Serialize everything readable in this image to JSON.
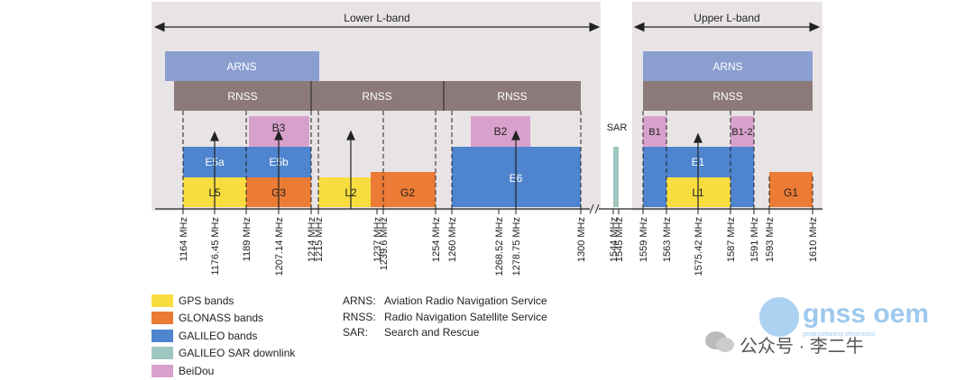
{
  "regions": {
    "lower": "Lower L-band",
    "upper": "Upper L-band"
  },
  "band_labels": {
    "arns": "ARNS",
    "rnss": "RNSS",
    "sar": "SAR",
    "l5": "L5",
    "e5a": "E5a",
    "e5b": "E5b",
    "b3": "B3",
    "g3": "G3",
    "l2": "L2",
    "g2": "G2",
    "b2": "B2",
    "e6": "E6",
    "b1": "B1",
    "b1_2": "B1-2",
    "e1": "E1",
    "l1": "L1",
    "g1": "G1"
  },
  "frequencies": [
    "1164 MHz",
    "1176.45 MHz",
    "1189 MHz",
    "1207.14 MHz",
    "1214 MHz",
    "1215 MHz",
    "1237 MHz",
    "1239.6 MHz",
    "1254 MHz",
    "1260 MHz",
    "1268.52 MHz",
    "1278.75 MHz",
    "1300 MHz",
    "1544 MHz",
    "1545 MHz",
    "1559 MHz",
    "1563 MHz",
    "1575.42 MHz",
    "1587 MHz",
    "1591 MHz",
    "1593 MHz",
    "1610 MHz"
  ],
  "legend": [
    {
      "label": "GPS bands",
      "color": "#f9dd3f"
    },
    {
      "label": "GLONASS bands",
      "color": "#ec7b35"
    },
    {
      "label": "GALILEO bands",
      "color": "#4f84cf"
    },
    {
      "label": "GALILEO SAR downlink",
      "color": "#9fc6c0"
    },
    {
      "label": "BeiDou",
      "color": "#d8a1cc"
    }
  ],
  "definitions": [
    {
      "abbr": "ARNS:",
      "text": "Aviation Radio Navigation Service"
    },
    {
      "abbr": "RNSS:",
      "text": "Radio Navigation Satellite Service"
    },
    {
      "abbr": "SAR:",
      "text": "Search and Rescue"
    }
  ],
  "colors": {
    "gps": "#f9dd3f",
    "glonass": "#ec7b35",
    "galileo": "#4f84cf",
    "sar": "#9fc6c0",
    "beidou": "#d8a1cc",
    "arns": "#8a9fd0",
    "rnss": "#8c7a7a",
    "panel": "#e8e4e6"
  },
  "watermark": {
    "brand": "gnss oem",
    "tagline": "geopositioning electronics",
    "account": "公众号 · 李二牛"
  }
}
